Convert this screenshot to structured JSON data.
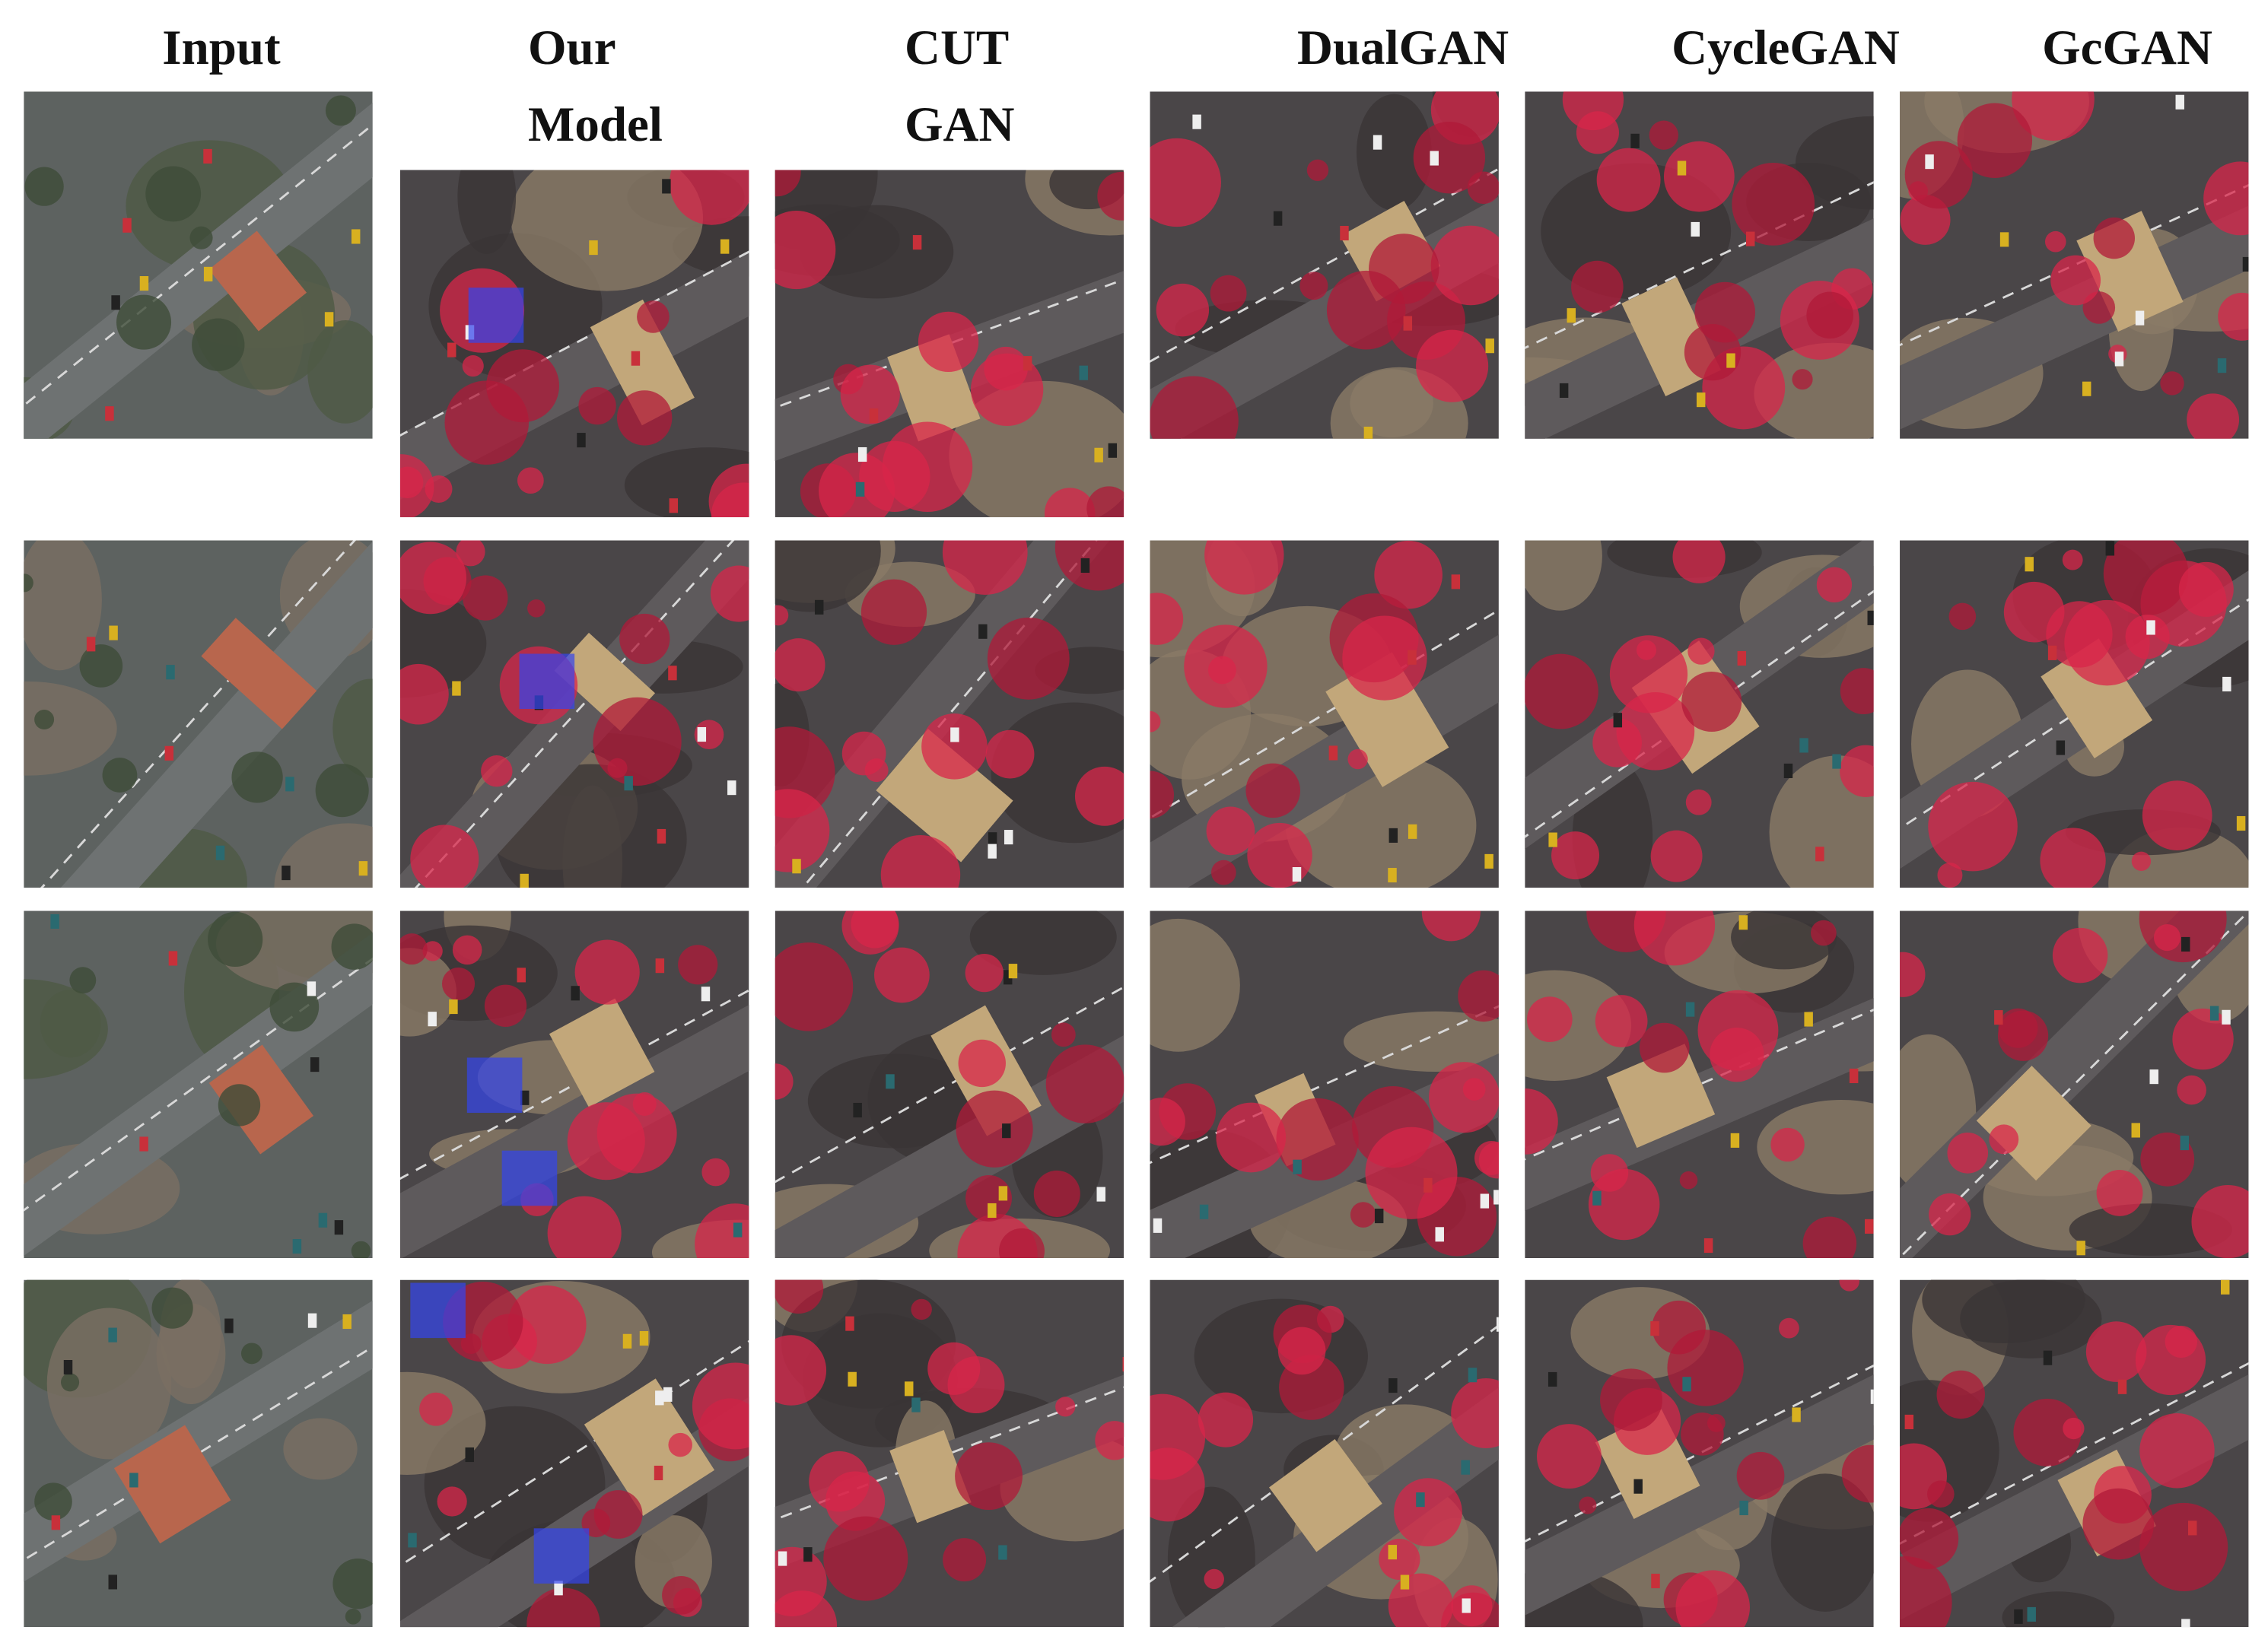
{
  "columns": [
    "Input",
    "Our Model",
    "CUT GAN",
    "DualGAN",
    "CycleGAN",
    "GcGAN"
  ]
}
